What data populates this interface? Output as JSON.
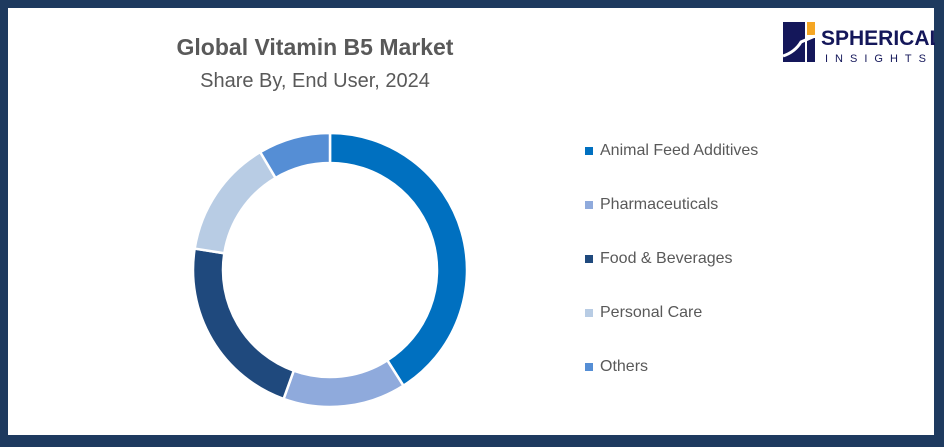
{
  "title": "Global Vitamin B5 Market",
  "subtitle": "Share By, End User, 2024",
  "logo": {
    "line1": "SPHERICAL",
    "line2": "INSIGHTS"
  },
  "chart_data": {
    "type": "pie",
    "subtype": "donut",
    "title": "Global Vitamin B5 Market",
    "subtitle": "Share By, End User, 2024",
    "categories": [
      "Animal Feed Additives",
      "Pharmaceuticals",
      "Food & Beverages",
      "Personal Care",
      "Others"
    ],
    "values": [
      41,
      14.5,
      22,
      14,
      8.5
    ],
    "colors": [
      "#0070c0",
      "#8faadc",
      "#1f497d",
      "#b8cce4",
      "#558ed5"
    ],
    "legend": "right"
  }
}
